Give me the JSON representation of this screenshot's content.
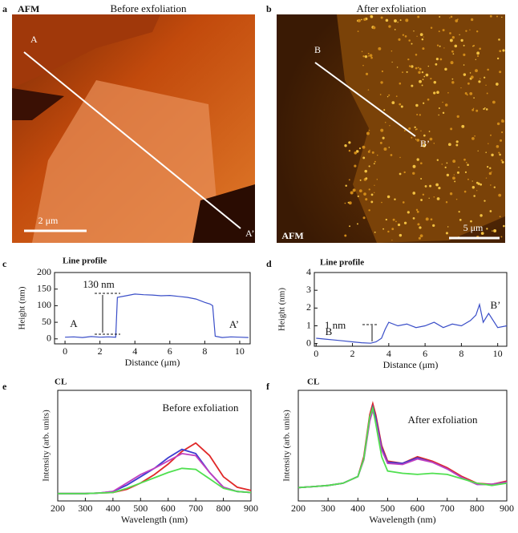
{
  "images": [
    {
      "panel": "a",
      "label": "AFM",
      "title": "Before exfoliation",
      "markers": [
        "A",
        "A’"
      ],
      "scale_bar": "2 μm"
    },
    {
      "panel": "b",
      "label": "AFM",
      "title": "After exfoliation",
      "markers": [
        "B",
        "B’"
      ],
      "scale_bar": "5 μm"
    }
  ],
  "chart_data": [
    {
      "type": "line",
      "panel": "c",
      "title": "Line profile",
      "x_label": "Distance (μm)",
      "y_label": "Height (nm)",
      "x": [
        0,
        0.5,
        1,
        1.5,
        2,
        2.5,
        2.9,
        3.0,
        3.5,
        4,
        4.5,
        5,
        5.5,
        6,
        6.5,
        7,
        7.5,
        8,
        8.3,
        8.45,
        8.6,
        9,
        9.5,
        10,
        10.5
      ],
      "series": [
        {
          "color": "#3a4ec8",
          "values": [
            5,
            6,
            4,
            7,
            5,
            6,
            5,
            125,
            130,
            135,
            133,
            132,
            130,
            131,
            128,
            125,
            120,
            110,
            105,
            100,
            8,
            4,
            6,
            5,
            4
          ]
        }
      ],
      "xlim": [
        -0.6,
        10.6
      ],
      "ylim": [
        -15,
        200
      ],
      "xticks": [
        0,
        2,
        4,
        6,
        8,
        10
      ],
      "yticks": [
        0,
        50,
        100,
        150,
        200
      ],
      "annotations": [
        "130 nm",
        "A",
        "A’"
      ]
    },
    {
      "type": "line",
      "panel": "d",
      "title": "Line profile",
      "x_label": "Distance (μm)",
      "y_label": "Height (nm)",
      "x": [
        0,
        0.5,
        1,
        1.5,
        2,
        2.5,
        3,
        3.3,
        3.6,
        3.8,
        4,
        4.5,
        5,
        5.5,
        6,
        6.5,
        7,
        7.5,
        8,
        8.5,
        8.8,
        9,
        9.2,
        9.5,
        10,
        10.5
      ],
      "series": [
        {
          "color": "#3a4ec8",
          "values": [
            0.3,
            0.25,
            0.2,
            0.15,
            0.1,
            0.05,
            0.02,
            0.1,
            0.3,
            0.8,
            1.2,
            1.0,
            1.1,
            0.9,
            1.0,
            1.2,
            0.9,
            1.1,
            1.0,
            1.3,
            1.6,
            2.2,
            1.2,
            1.7,
            0.9,
            1.0
          ]
        }
      ],
      "xlim": [
        -0.1,
        10.5
      ],
      "ylim": [
        -0.15,
        4
      ],
      "xticks": [
        0,
        2,
        4,
        6,
        8,
        10
      ],
      "yticks": [
        0,
        1,
        2,
        3,
        4
      ],
      "annotations": [
        "1 nm",
        "B",
        "B’"
      ]
    },
    {
      "type": "line",
      "panel": "e",
      "label": "CL",
      "x_label": "Wavelength (nm)",
      "y_label": "Intensity (arb. units)",
      "x": [
        200,
        250,
        300,
        350,
        400,
        450,
        500,
        550,
        600,
        650,
        700,
        750,
        800,
        850,
        900
      ],
      "series": [
        {
          "color": "#e02828",
          "values": [
            0.02,
            0.02,
            0.02,
            0.025,
            0.03,
            0.06,
            0.12,
            0.2,
            0.3,
            0.42,
            0.5,
            0.38,
            0.18,
            0.08,
            0.05
          ]
        },
        {
          "color": "#3c3cd0",
          "values": [
            0.02,
            0.02,
            0.02,
            0.025,
            0.04,
            0.1,
            0.18,
            0.26,
            0.36,
            0.44,
            0.4,
            0.22,
            0.08,
            0.04,
            0.03
          ]
        },
        {
          "color": "#c040c0",
          "values": [
            0.02,
            0.02,
            0.02,
            0.025,
            0.04,
            0.12,
            0.2,
            0.26,
            0.33,
            0.4,
            0.38,
            0.22,
            0.08,
            0.04,
            0.03
          ]
        },
        {
          "color": "#50e050",
          "values": [
            0.02,
            0.02,
            0.02,
            0.025,
            0.03,
            0.07,
            0.12,
            0.17,
            0.22,
            0.26,
            0.25,
            0.16,
            0.07,
            0.04,
            0.03
          ]
        }
      ],
      "xlim": [
        200,
        900
      ],
      "ylim": [
        -0.05,
        1
      ],
      "xticks": [
        200,
        300,
        400,
        500,
        600,
        700,
        800,
        900
      ],
      "annotations": [
        "Before exfoliation"
      ]
    },
    {
      "type": "line",
      "panel": "f",
      "label": "CL",
      "x_label": "Wavelength (nm)",
      "y_label": "Intensity (arb. units)",
      "x": [
        200,
        250,
        300,
        350,
        400,
        420,
        440,
        450,
        460,
        480,
        500,
        550,
        600,
        650,
        700,
        750,
        800,
        850,
        900
      ],
      "series": [
        {
          "color": "#e02828",
          "values": [
            0.12,
            0.13,
            0.14,
            0.16,
            0.22,
            0.4,
            0.78,
            0.88,
            0.78,
            0.5,
            0.36,
            0.34,
            0.4,
            0.36,
            0.3,
            0.22,
            0.16,
            0.15,
            0.18
          ]
        },
        {
          "color": "#3c3cd0",
          "values": [
            0.12,
            0.13,
            0.14,
            0.16,
            0.22,
            0.38,
            0.75,
            0.85,
            0.75,
            0.48,
            0.35,
            0.34,
            0.39,
            0.35,
            0.29,
            0.21,
            0.15,
            0.15,
            0.17
          ]
        },
        {
          "color": "#c040c0",
          "values": [
            0.12,
            0.13,
            0.14,
            0.16,
            0.22,
            0.37,
            0.72,
            0.82,
            0.72,
            0.46,
            0.34,
            0.33,
            0.38,
            0.35,
            0.29,
            0.21,
            0.15,
            0.15,
            0.17
          ]
        },
        {
          "color": "#50e050",
          "values": [
            0.12,
            0.13,
            0.14,
            0.16,
            0.22,
            0.38,
            0.76,
            0.84,
            0.7,
            0.4,
            0.27,
            0.25,
            0.24,
            0.25,
            0.24,
            0.2,
            0.16,
            0.14,
            0.16
          ]
        }
      ],
      "xlim": [
        200,
        900
      ],
      "ylim": [
        0,
        1
      ],
      "xticks": [
        200,
        300,
        400,
        500,
        600,
        700,
        800,
        900
      ],
      "annotations": [
        "After exfoliation"
      ]
    }
  ]
}
